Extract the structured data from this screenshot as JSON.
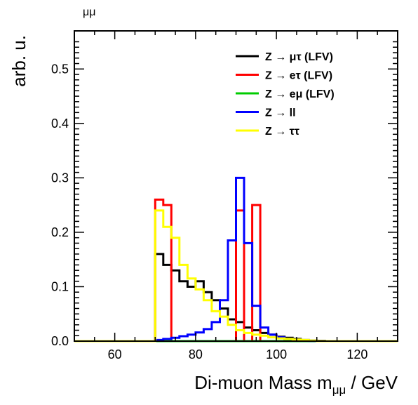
{
  "chart_data": {
    "type": "histogram",
    "top_label": "μμ",
    "ylabel": "arb. u.",
    "xlabel_prefix": "Di-muon Mass m",
    "xlabel_subscript": "μμ",
    "xlabel_suffix": " / GeV",
    "xlim": [
      50,
      130
    ],
    "ylim": [
      0,
      0.57
    ],
    "x_ticks": [
      60,
      80,
      100,
      120
    ],
    "y_ticks": [
      0.0,
      0.1,
      0.2,
      0.3,
      0.4,
      0.5
    ],
    "y_tick_labels": [
      "0.0",
      "0.1",
      "0.2",
      "0.3",
      "0.4",
      "0.5"
    ],
    "grid": false,
    "legend_position": "top-right",
    "bin_edges": [
      50,
      52,
      54,
      56,
      58,
      60,
      62,
      64,
      66,
      68,
      70,
      72,
      74,
      76,
      78,
      80,
      82,
      84,
      86,
      88,
      90,
      92,
      94,
      96,
      98,
      100,
      102,
      104,
      106,
      108,
      110,
      112,
      114,
      116,
      118,
      120,
      122,
      124,
      126,
      128,
      130
    ],
    "series": [
      {
        "name": "Z → μτ (LFV)",
        "color": "#000000",
        "values": [
          0,
          0,
          0,
          0,
          0,
          0,
          0,
          0,
          0,
          0,
          0.16,
          0.14,
          0.13,
          0.11,
          0.1,
          0.11,
          0.09,
          0.075,
          0.06,
          0.04,
          0.035,
          0.025,
          0.02,
          0.015,
          0.012,
          0.008,
          0.006,
          0.004,
          0.002,
          0.001,
          0.0005,
          0,
          0,
          0,
          0,
          0,
          0,
          0,
          0,
          0
        ]
      },
      {
        "name": "Z → eτ (LFV)",
        "color": "#ff0000",
        "values": [
          0,
          0,
          0,
          0,
          0,
          0,
          0,
          0,
          0,
          0,
          0.26,
          0.25,
          0,
          0,
          0,
          0,
          0,
          0,
          0,
          0,
          0.24,
          0,
          0.25,
          0,
          0,
          0,
          0,
          0,
          0,
          0,
          0,
          0,
          0,
          0,
          0,
          0,
          0,
          0,
          0,
          0
        ]
      },
      {
        "name": "Z → eμ (LFV)",
        "color": "#00cc00",
        "values": [
          0,
          0,
          0,
          0,
          0,
          0,
          0,
          0,
          0,
          0,
          0,
          0,
          0,
          0,
          0,
          0,
          0,
          0,
          0,
          0,
          0,
          0,
          0,
          0,
          0,
          0,
          0,
          0,
          0,
          0,
          0,
          0,
          0,
          0,
          0,
          0,
          0,
          0,
          0,
          0
        ]
      },
      {
        "name": "Z → ll",
        "color": "#0000ff",
        "values": [
          0,
          0,
          0,
          0,
          0,
          0,
          0,
          0,
          0,
          0,
          0.002,
          0.004,
          0.006,
          0.009,
          0.012,
          0.016,
          0.022,
          0.035,
          0.075,
          0.185,
          0.3,
          0.18,
          0.065,
          0.025,
          0.012,
          0.007,
          0.004,
          0.002,
          0.001,
          0.0005,
          0,
          0,
          0,
          0,
          0,
          0,
          0,
          0,
          0,
          0
        ]
      },
      {
        "name": "Z → ττ",
        "color": "#ffff00",
        "values": [
          0,
          0,
          0,
          0,
          0,
          0,
          0,
          0,
          0,
          0,
          0.24,
          0.21,
          0.19,
          0.14,
          0.115,
          0.095,
          0.075,
          0.055,
          0.045,
          0.03,
          0.02,
          0.015,
          0.012,
          0.01,
          0.007,
          0.005,
          0.004,
          0.003,
          0.002,
          0.001,
          0,
          0,
          0,
          0,
          0,
          0,
          0,
          0,
          0,
          0
        ]
      }
    ]
  }
}
